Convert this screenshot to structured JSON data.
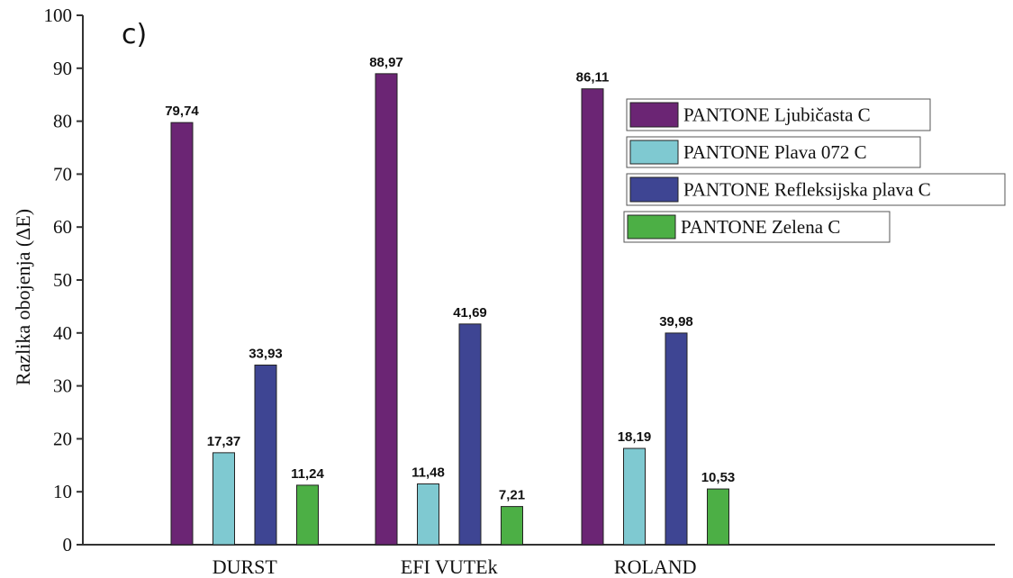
{
  "chart_data": {
    "type": "bar",
    "panel_label": "c)",
    "ylabel": "Razlika obojenja (ΔE)",
    "xlabel": "",
    "ylim": [
      0,
      100
    ],
    "yticks": [
      0,
      10,
      20,
      30,
      40,
      50,
      60,
      70,
      80,
      90,
      100
    ],
    "categories": [
      "DURST",
      "EFI VUTEk",
      "ROLAND"
    ],
    "series": [
      {
        "name": "PANTONE Ljubičasta C",
        "color": "#6b2574",
        "values": [
          79.74,
          88.97,
          86.11
        ],
        "labels": [
          "79,74",
          "88,97",
          "86,11"
        ]
      },
      {
        "name": "PANTONE Plava 072 C",
        "color": "#7fc9d1",
        "values": [
          17.37,
          11.48,
          18.19
        ],
        "labels": [
          "17,37",
          "11,48",
          "18,19"
        ]
      },
      {
        "name": "PANTONE Refleksijska plava C",
        "color": "#3e4593",
        "values": [
          33.93,
          41.69,
          39.98
        ],
        "labels": [
          "33,93",
          "41,69",
          "39,98"
        ]
      },
      {
        "name": "PANTONE Zelena C",
        "color": "#4caf45",
        "values": [
          11.24,
          7.21,
          10.53
        ],
        "labels": [
          "11,24",
          "7,21",
          "10,53"
        ]
      }
    ],
    "legend": "top-right",
    "grid": false
  }
}
